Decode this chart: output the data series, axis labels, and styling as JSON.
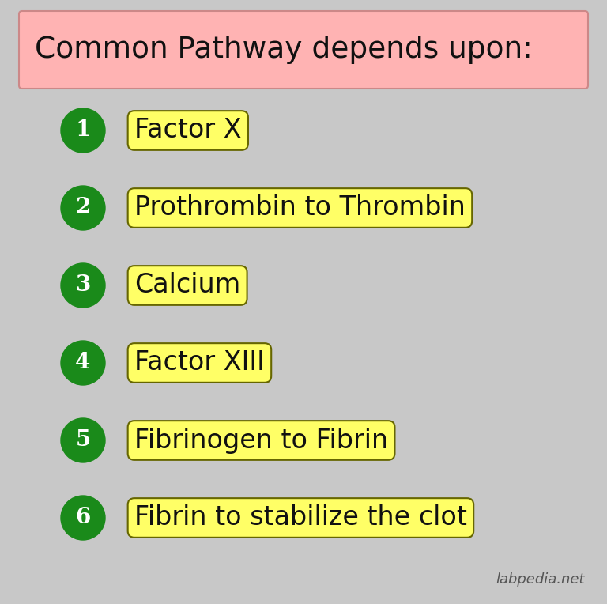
{
  "title": "Common Pathway depends upon:",
  "title_bg": "#FFB3B3",
  "title_border": "#cc8888",
  "background_color": "#C8C8C8",
  "items": [
    "Factor X",
    "Prothrombin to Thrombin",
    "Calcium",
    "Factor XIII",
    "Fibrinogen to Fibrin",
    "Fibrin to stabilize the clot"
  ],
  "item_bg": "#FFFF66",
  "item_border": "#666600",
  "circle_color": "#1a8a1a",
  "circle_text_color": "#FFFFFF",
  "text_color": "#111111",
  "watermark": "labpedia.net",
  "watermark_color": "#555555",
  "title_fontsize": 27,
  "item_fontsize": 24,
  "circle_fontsize": 20,
  "watermark_fontsize": 13
}
